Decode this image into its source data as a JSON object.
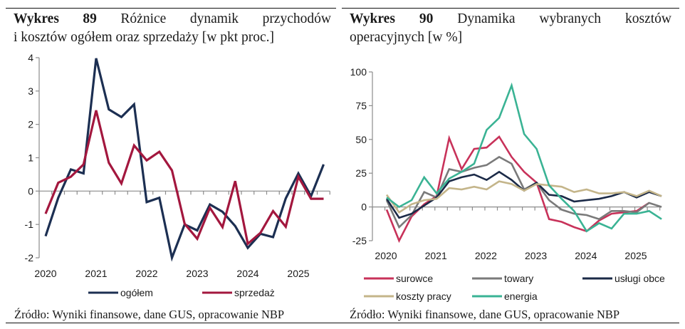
{
  "left": {
    "title": {
      "label": "Wykres",
      "number": "89",
      "words": [
        "Różnice",
        "dynamik",
        "przychodów"
      ],
      "line2": "i kosztów ogółem oraz sprzedaży [w pkt proc.]"
    },
    "source": "Źródło: Wyniki finansowe, dane GUS, opracowanie NBP"
  },
  "right": {
    "title": {
      "label": "Wykres",
      "number": "90",
      "words": [
        "Dynamika",
        "wybranych",
        "kosztów"
      ],
      "line2": "operacyjnych [w %]"
    },
    "source": "Źródło: Wyniki finansowe, dane GUS, opracowanie NBP"
  },
  "chart_data": [
    {
      "type": "line",
      "title": "Różnice dynamik przychodów i kosztów ogółem oraz sprzedaży [w pkt proc.]",
      "xlabel": "",
      "ylabel": "pkt proc.",
      "x_tick_labels": [
        "2020",
        "2021",
        "2022",
        "2023",
        "2024",
        "2025"
      ],
      "x_frequency": "quarterly",
      "ylim": [
        -2,
        4
      ],
      "y_ticks": [
        -2,
        -1,
        0,
        1,
        2,
        3,
        4
      ],
      "grid": false,
      "legend_position": "bottom",
      "series": [
        {
          "name": "ogółem",
          "color": "#1c2f52",
          "values": [
            -1.35,
            -0.2,
            0.65,
            0.53,
            3.98,
            2.45,
            2.22,
            2.6,
            -0.33,
            -0.2,
            -2.0,
            -1.0,
            -1.18,
            -0.4,
            -0.62,
            -1.05,
            -1.7,
            -1.28,
            -1.38,
            -0.22,
            0.53,
            -0.15,
            0.8
          ]
        },
        {
          "name": "sprzedaż",
          "color": "#a3173e",
          "values": [
            -0.68,
            0.25,
            0.43,
            0.8,
            2.42,
            0.85,
            0.23,
            1.37,
            0.92,
            1.18,
            0.62,
            -0.98,
            -1.43,
            -0.5,
            -1.08,
            0.3,
            -1.58,
            -1.25,
            -0.6,
            -1.07,
            0.43,
            -0.23,
            -0.23
          ]
        }
      ]
    },
    {
      "type": "line",
      "title": "Dynamika wybranych kosztów operacyjnych [w %]",
      "xlabel": "",
      "ylabel": "%",
      "x_tick_labels": [
        "2020",
        "2021",
        "2022",
        "2023",
        "2024",
        "2025"
      ],
      "x_frequency": "quarterly",
      "ylim": [
        -25,
        100
      ],
      "y_ticks": [
        -25,
        0,
        25,
        50,
        75,
        100
      ],
      "grid": false,
      "legend_position": "bottom",
      "series": [
        {
          "name": "surowce",
          "color": "#c8325a",
          "values": [
            -2,
            -25,
            -7,
            2,
            8,
            51,
            28,
            43,
            44,
            52,
            37,
            26,
            18,
            -9,
            -11,
            -15,
            -18,
            -10,
            -5,
            -4,
            -3,
            3
          ]
        },
        {
          "name": "towary",
          "color": "#7a7a7a",
          "values": [
            5,
            -15,
            -6,
            11,
            7,
            28,
            26,
            29,
            31,
            37,
            32,
            13,
            18,
            5,
            -2,
            -5,
            -6,
            -9,
            -3,
            -3,
            -4,
            3,
            0
          ]
        },
        {
          "name": "usługi obce",
          "color": "#1b2a47",
          "values": [
            6,
            -8,
            -5,
            1,
            7,
            19,
            22,
            24,
            20,
            26,
            20,
            12,
            18,
            9,
            8,
            4,
            5,
            6,
            8,
            11,
            7,
            11,
            8
          ]
        },
        {
          "name": "koszty pracy",
          "color": "#c4b58a",
          "values": [
            9,
            -4,
            2,
            5,
            6,
            14,
            13,
            15,
            13,
            19,
            17,
            12,
            17,
            16,
            15,
            11,
            13,
            10,
            10,
            11,
            8,
            12,
            8
          ]
        },
        {
          "name": "energia",
          "color": "#3ab394",
          "values": [
            7,
            0,
            5,
            22,
            10,
            21,
            26,
            32,
            57,
            66,
            90,
            54,
            43,
            16,
            6,
            -3,
            -18,
            -12,
            -16,
            -5,
            -5,
            -3,
            -9
          ]
        }
      ]
    }
  ]
}
